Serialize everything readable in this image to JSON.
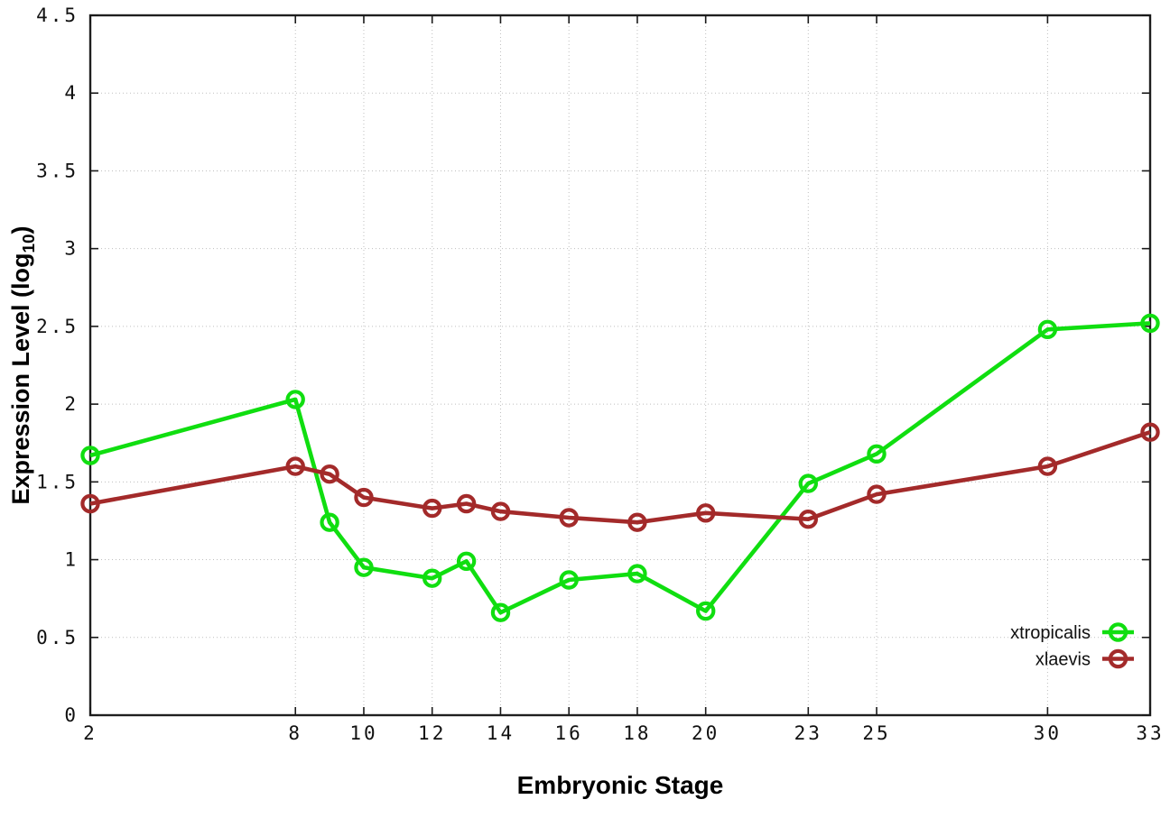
{
  "figure": {
    "xlabel": "Embryonic Stage",
    "ylabel_pre": "Expression Level (log",
    "ylabel_sub": "10",
    "ylabel_post": ")"
  },
  "chart_data": {
    "type": "line",
    "title": "",
    "xlabel": "Embryonic Stage",
    "ylabel": "Expression Level (log10)",
    "grid": true,
    "legend_position": "bottom-right-inside",
    "xlim": [
      2,
      33
    ],
    "ylim": [
      0,
      4.5
    ],
    "x": [
      2,
      8,
      9,
      10,
      12,
      13,
      14,
      16,
      18,
      20,
      23,
      25,
      30,
      33
    ],
    "xticks": [
      2,
      8,
      10,
      12,
      14,
      16,
      18,
      20,
      23,
      25,
      30,
      33
    ],
    "yticks": [
      0,
      0.5,
      1,
      1.5,
      2,
      2.5,
      3,
      3.5,
      4,
      4.5
    ],
    "ytick_labels": [
      "0",
      "0.5",
      "1",
      "1.5",
      "2",
      "2.5",
      "3",
      "3.5",
      "4",
      "4.5"
    ],
    "colors": {
      "grid": "#bfbfbf",
      "axis": "#1f1f1f"
    },
    "marker": "open-circle",
    "series": [
      {
        "name": "xtropicalis",
        "color": "#10DE10",
        "values": [
          1.67,
          2.03,
          1.24,
          0.95,
          0.88,
          0.99,
          0.66,
          0.87,
          0.91,
          0.67,
          1.49,
          1.68,
          2.48,
          2.52
        ]
      },
      {
        "name": "xlaevis",
        "color": "#A32A2A",
        "values": [
          1.36,
          1.6,
          1.55,
          1.4,
          1.33,
          1.36,
          1.31,
          1.27,
          1.24,
          1.3,
          1.26,
          1.42,
          1.6,
          1.82
        ]
      }
    ]
  }
}
